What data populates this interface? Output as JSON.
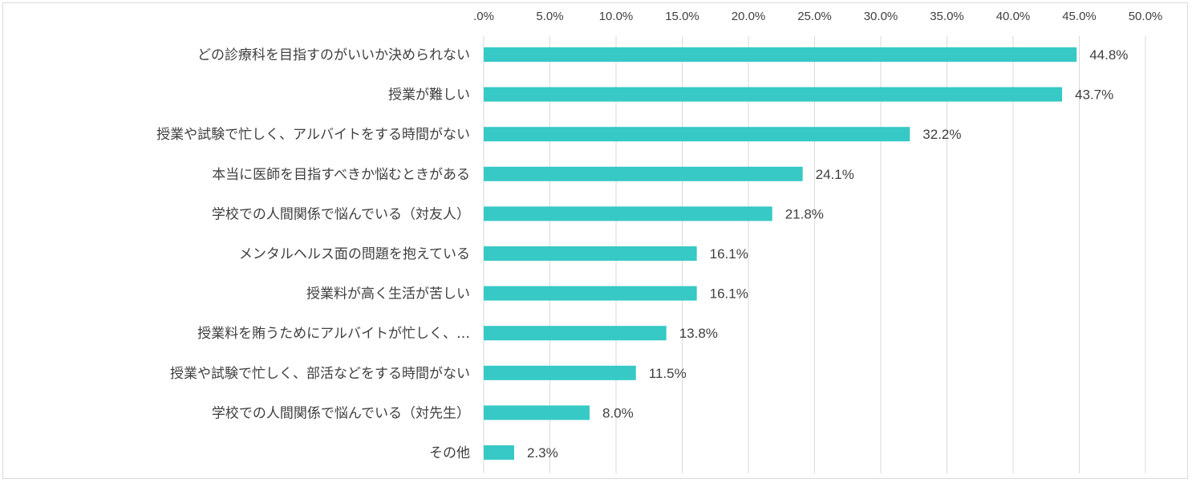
{
  "chart_data": {
    "type": "bar",
    "orientation": "horizontal",
    "title": "",
    "xlabel": "",
    "ylabel": "",
    "xlim": [
      0,
      50
    ],
    "x_ticks": [
      ".0%",
      "5.0%",
      "10.0%",
      "15.0%",
      "20.0%",
      "25.0%",
      "30.0%",
      "35.0%",
      "40.0%",
      "45.0%",
      "50.0%"
    ],
    "grid": true,
    "legend": "none",
    "bar_color": "#36C9C6",
    "categories": [
      "どの診療科を目指すのがいいか決められない",
      "授業が難しい",
      "授業や試験で忙しく、アルバイトをする時間がない",
      "本当に医師を目指すべきか悩むときがある",
      "学校での人間関係で悩んでいる（対友人）",
      "メンタルヘルス面の問題を抱えている",
      "授業料が高く生活が苦しい",
      "授業料を賄うためにアルバイトが忙しく、…",
      "授業や試験で忙しく、部活などをする時間がない",
      "学校での人間関係で悩んでいる（対先生）",
      "その他"
    ],
    "values": [
      44.8,
      43.7,
      32.2,
      24.1,
      21.8,
      16.1,
      16.1,
      13.8,
      11.5,
      8.0,
      2.3
    ],
    "value_labels": [
      "44.8%",
      "43.7%",
      "32.2%",
      "24.1%",
      "21.8%",
      "16.1%",
      "16.1%",
      "13.8%",
      "11.5%",
      "8.0%",
      "2.3%"
    ]
  }
}
